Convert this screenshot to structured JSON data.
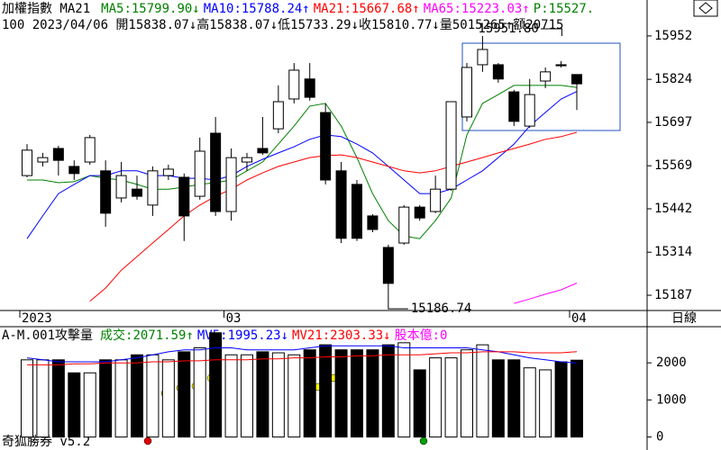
{
  "chart_data": [
    {
      "type": "candlestick",
      "title": "加權指數 MA21",
      "title_color": "#000000",
      "subtitle": "100 2023/04/06 開15838.07↓高15838.07↓低15733.29↓收15810.77↓量5015265↑額20715",
      "extra": {
        "text": "P:15527.",
        "color": "#008000"
      },
      "categories": [
        "2023",
        null,
        null,
        null,
        null,
        null,
        null,
        null,
        null,
        null,
        null,
        null,
        null,
        "03",
        null,
        null,
        null,
        null,
        null,
        null,
        null,
        null,
        null,
        null,
        null,
        null,
        null,
        null,
        null,
        null,
        null,
        null,
        null,
        null,
        null,
        "04"
      ],
      "open": [
        15540,
        15580,
        15620,
        15567,
        15580,
        15554,
        15474,
        15500,
        15453,
        15540,
        15535,
        15479,
        15665,
        15434,
        15580,
        15620,
        15678,
        15766,
        15825,
        15726,
        15554,
        15514,
        15421,
        15328,
        15341,
        15447,
        15434,
        15500,
        15713,
        15867,
        15867,
        15787,
        15686,
        15819,
        15867,
        15838.07
      ],
      "high": [
        15633,
        15607,
        15628,
        15585,
        15660,
        15585,
        15580,
        15540,
        15567,
        15572,
        15546,
        15652,
        15713,
        15620,
        15607,
        15713,
        15806,
        15872,
        15872,
        15753,
        15580,
        15527,
        15426,
        15336,
        15453,
        15453,
        15540,
        15758,
        15872,
        15951.8,
        15872,
        15793,
        15825,
        15859,
        15878,
        15838.07
      ],
      "low": [
        15535,
        15567,
        15540,
        15527,
        15572,
        15389,
        15461,
        15469,
        15421,
        15527,
        15347,
        15469,
        15421,
        15407,
        15554,
        15601,
        15665,
        15753,
        15761,
        15514,
        15341,
        15347,
        15373,
        15186.74,
        15336,
        15407,
        15429,
        15495,
        15700,
        15846,
        15814,
        15686,
        15681,
        15798,
        15859,
        15733.29
      ],
      "close": [
        15615,
        15593,
        15585,
        15546,
        15652,
        15429,
        15540,
        15479,
        15554,
        15559,
        15421,
        15612,
        15434,
        15593,
        15593,
        15607,
        15758,
        15851,
        15771,
        15527,
        15355,
        15355,
        15381,
        15222,
        15447,
        15415,
        15500,
        15758,
        15859,
        15912,
        15825,
        15700,
        15779,
        15846,
        15864,
        15810.77
      ],
      "series": [
        {
          "label": "MA5:15799.90↓",
          "color": "#008000",
          "values": [
            15527,
            15527,
            15519,
            15522,
            15540,
            15532,
            15527,
            15514,
            15500,
            15500,
            15506,
            15514,
            15519,
            15527,
            15554,
            15580,
            15633,
            15686,
            15745,
            15753,
            15686,
            15593,
            15487,
            15407,
            15362,
            15354,
            15407,
            15474,
            15660,
            15753,
            15779,
            15806,
            15806,
            15806,
            15806,
            15799.9
          ]
        },
        {
          "label": "MA10:15788.24↑",
          "color": "#0000ff",
          "values": [
            15354,
            15421,
            15487,
            15514,
            15540,
            15540,
            15554,
            15554,
            15540,
            15540,
            15532,
            15532,
            15527,
            15540,
            15567,
            15588,
            15607,
            15625,
            15647,
            15660,
            15655,
            15633,
            15607,
            15567,
            15527,
            15487,
            15487,
            15500,
            15527,
            15554,
            15593,
            15633,
            15686,
            15726,
            15766,
            15788.24
          ]
        },
        {
          "label": "MA21:15667.68↑",
          "color": "#ff0000",
          "values": [
            null,
            null,
            null,
            null,
            15169,
            15208,
            15261,
            15301,
            15341,
            15381,
            15421,
            15453,
            15479,
            15500,
            15527,
            15548,
            15567,
            15580,
            15593,
            15599,
            15601,
            15593,
            15580,
            15567,
            15554,
            15548,
            15554,
            15567,
            15580,
            15593,
            15607,
            15620,
            15633,
            15647,
            15655,
            15667.68
          ]
        },
        {
          "label": "MA65:15223.03↑",
          "color": "#ff00ff",
          "values": [
            null,
            null,
            null,
            null,
            null,
            null,
            null,
            null,
            null,
            null,
            null,
            null,
            null,
            null,
            null,
            null,
            null,
            null,
            null,
            null,
            null,
            null,
            null,
            null,
            null,
            null,
            null,
            null,
            null,
            null,
            null,
            15163,
            15176,
            15190,
            15203,
            15223.03
          ]
        }
      ],
      "annotations": [
        "15951.80",
        "15186.74"
      ],
      "ylim": [
        15142,
        16058
      ],
      "yticks": [
        15952,
        15824,
        15697,
        15569,
        15442,
        15314,
        15187
      ]
    },
    {
      "type": "bar",
      "title": "A-M.001攻擊量",
      "title_color": "#000000",
      "value_label": {
        "text": "成交:2071.59↑",
        "color": "#008000"
      },
      "extra": {
        "text": "股本億:0",
        "color": "#ff00ff"
      },
      "values": [
        2081,
        2081,
        2081,
        1730,
        1730,
        2081,
        2081,
        2216,
        2216,
        2081,
        2297,
        2405,
        2811,
        2216,
        2216,
        2297,
        2270,
        2216,
        2351,
        2486,
        2351,
        2351,
        2351,
        2486,
        2541,
        1811,
        2135,
        2135,
        2351,
        2486,
        2081,
        2081,
        1865,
        1811,
        2027,
        2071.59
      ],
      "series": [
        {
          "label": "MV5:1995.23↓",
          "color": "#0000ff",
          "values": [
            2135,
            2081,
            2027,
            2027,
            2027,
            2027,
            2081,
            2135,
            2216,
            2297,
            2351,
            2351,
            2405,
            2405,
            2351,
            2351,
            2351,
            2351,
            2405,
            2459,
            2459,
            2459,
            2459,
            2459,
            2405,
            2405,
            2405,
            2405,
            2405,
            2351,
            2297,
            2216,
            2135,
            2081,
            2027,
            1995.23
          ]
        },
        {
          "label": "MV21:2303.33↓",
          "color": "#ff0000",
          "values": [
            1946,
            1946,
            1946,
            1973,
            1973,
            2000,
            2000,
            2000,
            2027,
            2027,
            2054,
            2054,
            2081,
            2081,
            2081,
            2108,
            2108,
            2135,
            2135,
            2162,
            2162,
            2189,
            2189,
            2216,
            2216,
            2216,
            2243,
            2270,
            2270,
            2297,
            2297,
            2297,
            2270,
            2270,
            2270,
            2303.33
          ]
        }
      ],
      "ylim": [
        -350,
        2950
      ],
      "yticks": [
        2000,
        1000,
        0
      ]
    }
  ],
  "period": "日線",
  "footer": "奇狐勝券 v5.2"
}
